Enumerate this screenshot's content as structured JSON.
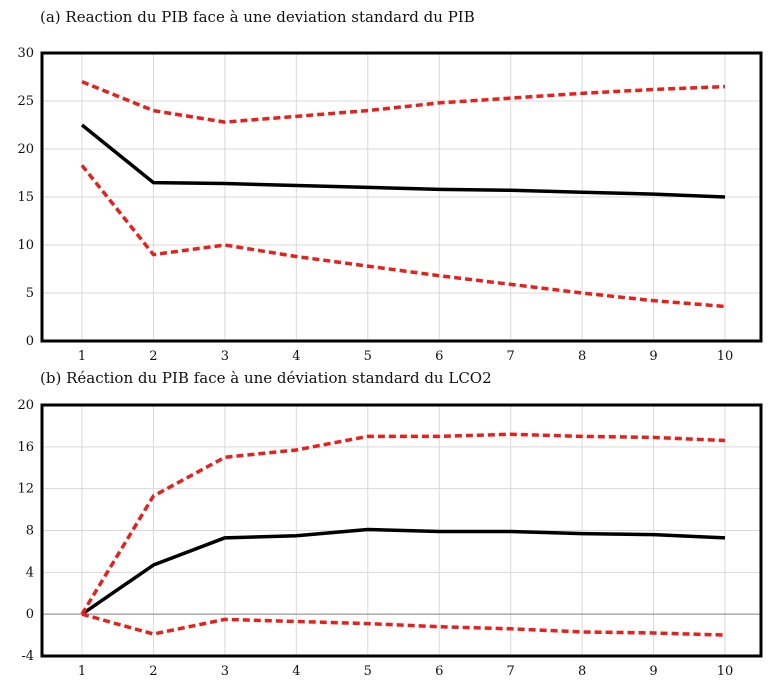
{
  "chart_data": [
    {
      "type": "line",
      "title": "(a) Reaction du PIB face à une deviation standard du PIB",
      "x": [
        1,
        2,
        3,
        4,
        5,
        6,
        7,
        8,
        9,
        10
      ],
      "xticks": [
        "1",
        "2",
        "3",
        "4",
        "5",
        "6",
        "7",
        "8",
        "9",
        "10"
      ],
      "ylim": [
        0,
        30
      ],
      "yticks": [
        "0",
        "5",
        "10",
        "15",
        "20",
        "25",
        "30"
      ],
      "grid": true,
      "series": [
        {
          "style": "solid",
          "color": "#000000",
          "values": [
            22.5,
            16.5,
            16.4,
            16.2,
            16.0,
            15.8,
            15.7,
            15.5,
            15.3,
            15.0
          ]
        },
        {
          "style": "dashed",
          "color": "#e8201c",
          "values": [
            27.0,
            24.0,
            22.8,
            23.4,
            24.0,
            24.8,
            25.3,
            25.8,
            26.2,
            26.5
          ]
        },
        {
          "style": "dashed",
          "color": "#e8201c",
          "values": [
            18.3,
            9.0,
            10.0,
            8.8,
            7.8,
            6.8,
            5.9,
            5.0,
            4.2,
            3.6
          ]
        }
      ]
    },
    {
      "type": "line",
      "title": "(b) Réaction du PIB face à une déviation standard du LCO2",
      "x": [
        1,
        2,
        3,
        4,
        5,
        6,
        7,
        8,
        9,
        10
      ],
      "xticks": [
        "1",
        "2",
        "3",
        "4",
        "5",
        "6",
        "7",
        "8",
        "9",
        "10"
      ],
      "ylim": [
        -4,
        20
      ],
      "yticks": [
        "-4",
        "0",
        "4",
        "8",
        "12",
        "16",
        "20"
      ],
      "grid": true,
      "series": [
        {
          "style": "solid",
          "color": "#000000",
          "values": [
            0.0,
            4.7,
            7.3,
            7.5,
            8.1,
            7.9,
            7.9,
            7.7,
            7.6,
            7.3
          ]
        },
        {
          "style": "dashed",
          "color": "#e8201c",
          "values": [
            0.0,
            11.3,
            15.0,
            15.7,
            17.0,
            17.0,
            17.2,
            17.0,
            16.9,
            16.6
          ]
        },
        {
          "style": "dashed",
          "color": "#e8201c",
          "values": [
            0.0,
            -1.9,
            -0.5,
            -0.7,
            -0.9,
            -1.2,
            -1.4,
            -1.7,
            -1.8,
            -2.0
          ]
        }
      ]
    }
  ]
}
